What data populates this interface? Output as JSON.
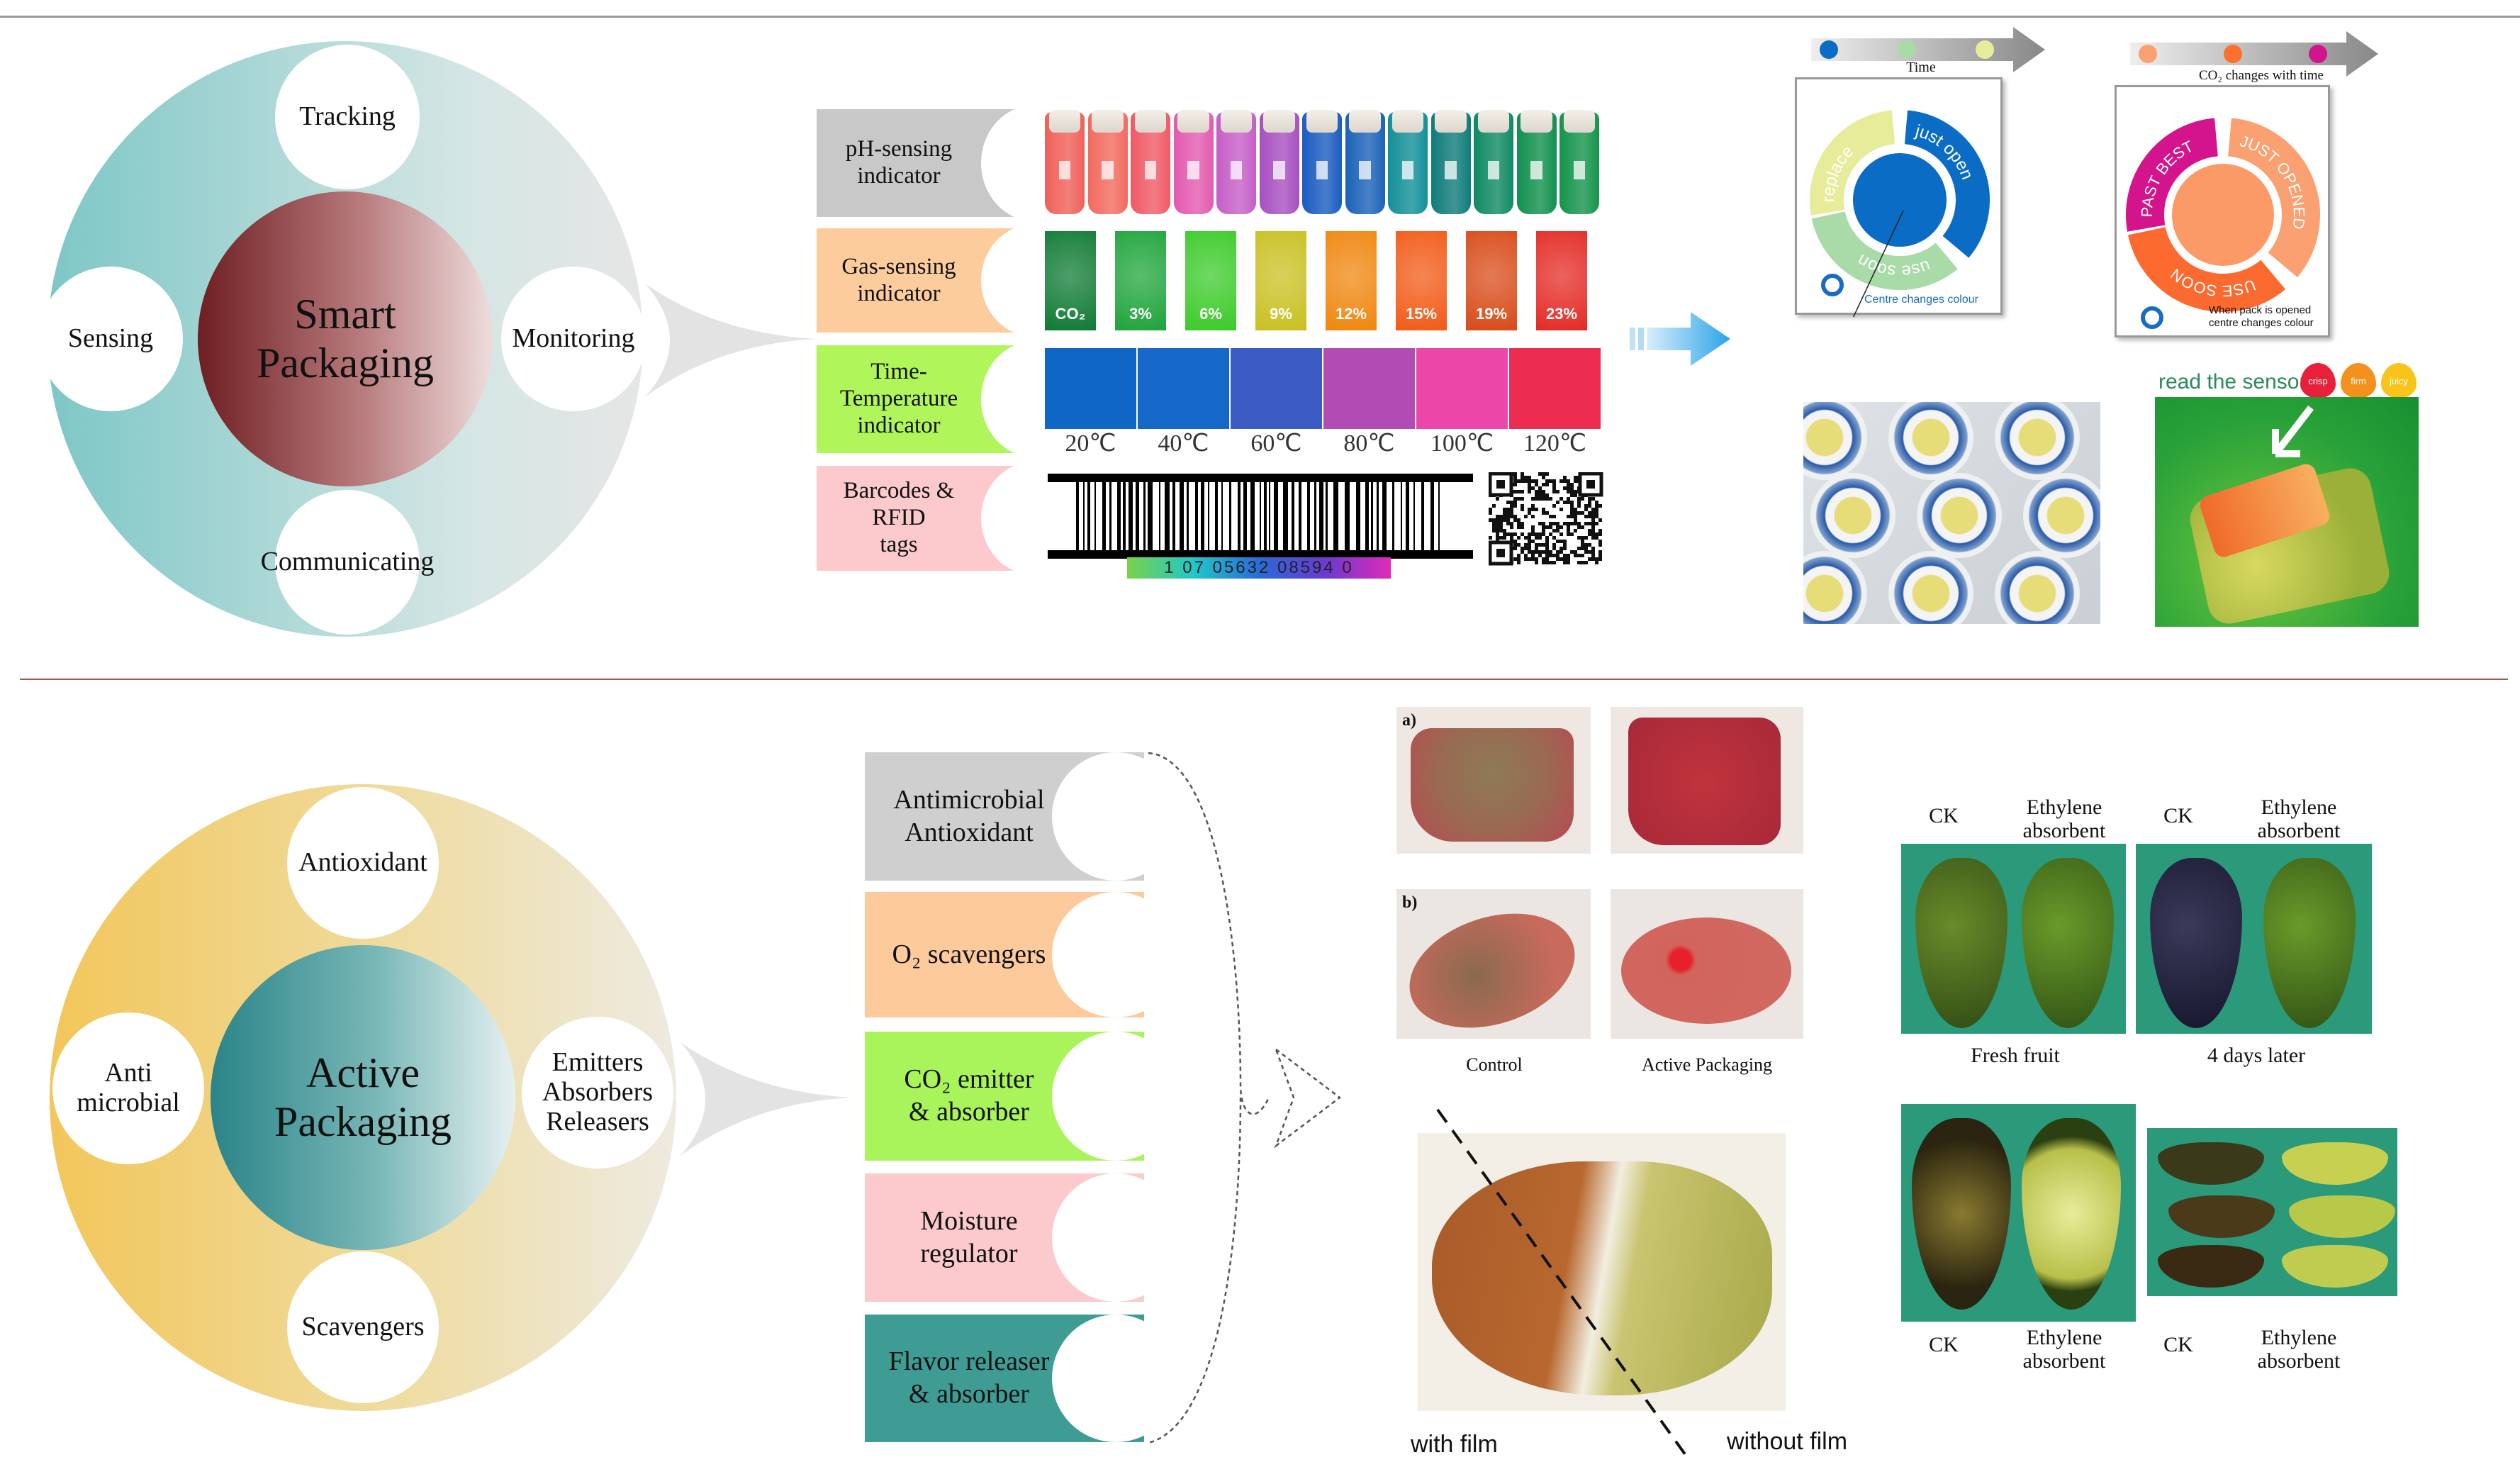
{
  "smart": {
    "title_line1": "Smart",
    "title_line2": "Packaging",
    "satellites": [
      "Tracking",
      "Sensing",
      "Monitoring",
      "Communicating"
    ],
    "indicators": [
      {
        "label_line1": "pH-sensing",
        "label_line2": "indicator",
        "color": "#c8c8c8"
      },
      {
        "label_line1": "Gas-sensing",
        "label_line2": "indicator",
        "color": "#fdcc9c"
      },
      {
        "label_line1": "Time-Temperature",
        "label_line2": "indicator",
        "color": "#b0f55a"
      },
      {
        "label_line1": "Barcodes & RFID",
        "label_line2": "tags",
        "color": "#fcc9cc"
      }
    ],
    "ph_vial_colors": [
      "#f0605a",
      "#f26a5e",
      "#f05a66",
      "#e35ab0",
      "#c65ec8",
      "#a84fc0",
      "#1a5cc0",
      "#1b62b8",
      "#138f98",
      "#0f7c7a",
      "#0f8a62",
      "#11904e",
      "#14944c"
    ],
    "gas_swatches": [
      {
        "label": "CO₂",
        "color": "#0f7a34"
      },
      {
        "label": "3%",
        "color": "#1ea43a"
      },
      {
        "label": "6%",
        "color": "#3cca2a"
      },
      {
        "label": "9%",
        "color": "#c8c020"
      },
      {
        "label": "12%",
        "color": "#f0860e"
      },
      {
        "label": "15%",
        "color": "#f25a16"
      },
      {
        "label": "19%",
        "color": "#d84a18"
      },
      {
        "label": "23%",
        "color": "#e42a24"
      }
    ],
    "tti_swatches": [
      {
        "label": "20℃",
        "color": "#1066c4"
      },
      {
        "label": "40℃",
        "color": "#1668c8"
      },
      {
        "label": "60℃",
        "color": "#3c5cc4"
      },
      {
        "label": "80℃",
        "color": "#b04cb4"
      },
      {
        "label": "100℃",
        "color": "#ec46a8"
      },
      {
        "label": "120℃",
        "color": "#ec2c50"
      }
    ],
    "barcode_number": "1 07 05632 08594 0",
    "dial1": {
      "axis_label": "Time",
      "dot_colors": [
        "#0a6cc4",
        "#a8dba8",
        "#e6ec9a"
      ],
      "segments": [
        {
          "text": "replace",
          "color": "#e6ec9a"
        },
        {
          "text": "just open",
          "color": "#0a6cc4"
        },
        {
          "text": "use soon",
          "color": "#a8dba8"
        }
      ],
      "center_color": "#0a6cc4",
      "note": "Centre changes colour"
    },
    "dial2": {
      "axis_label": "CO₂ changes with time",
      "dot_colors": [
        "#fba070",
        "#fc7030",
        "#d4148c"
      ],
      "segments": [
        {
          "text": "PAST BEST",
          "color": "#d4148c"
        },
        {
          "text": "JUST OPENED",
          "color": "#fba070"
        },
        {
          "text": "USE SOON",
          "color": "#fc6a30"
        }
      ],
      "center_color": "#fb9a66",
      "note_line1": "When pack is opened",
      "note_line2": "centre changes colour"
    },
    "sensor_photo": {
      "heading": "read the sensor",
      "drops": [
        {
          "label": "crisp",
          "color": "#e8203a"
        },
        {
          "label": "firm",
          "color": "#f4901c"
        },
        {
          "label": "juicy",
          "color": "#f8c41a"
        }
      ]
    }
  },
  "active": {
    "title_line1": "Active",
    "title_line2": "Packaging",
    "satellites": {
      "top": "Antioxidant",
      "left_line1": "Anti",
      "left_line2": "microbial",
      "right_line1": "Emitters",
      "right_line2": "Absorbers",
      "right_line3": "Releasers",
      "bottom": "Scavengers"
    },
    "functions": [
      {
        "line1": "Antimicrobial",
        "line2": "Antioxidant",
        "color": "#cfcfcf"
      },
      {
        "line1": "O₂ scavengers",
        "line2": "",
        "color": "#fdcb9b"
      },
      {
        "line1": "CO₂ emitter",
        "line2": "& absorber",
        "color": "#a9f45a"
      },
      {
        "line1": "Moisture",
        "line2": "regulator",
        "color": "#fcc9cc"
      },
      {
        "line1": "Flavor releaser",
        "line2": "& absorber",
        "color": "#3f9c95"
      }
    ],
    "meat": {
      "row_a": "a)",
      "row_b": "b)",
      "col1": "Control",
      "col2": "Active Packaging"
    },
    "bread": {
      "left": "with film",
      "right": "without film"
    },
    "avocado": {
      "ck": "CK",
      "eth_line1": "Ethylene",
      "eth_line2": "absorbent",
      "fresh": "Fresh fruit",
      "later": "4 days later"
    }
  }
}
